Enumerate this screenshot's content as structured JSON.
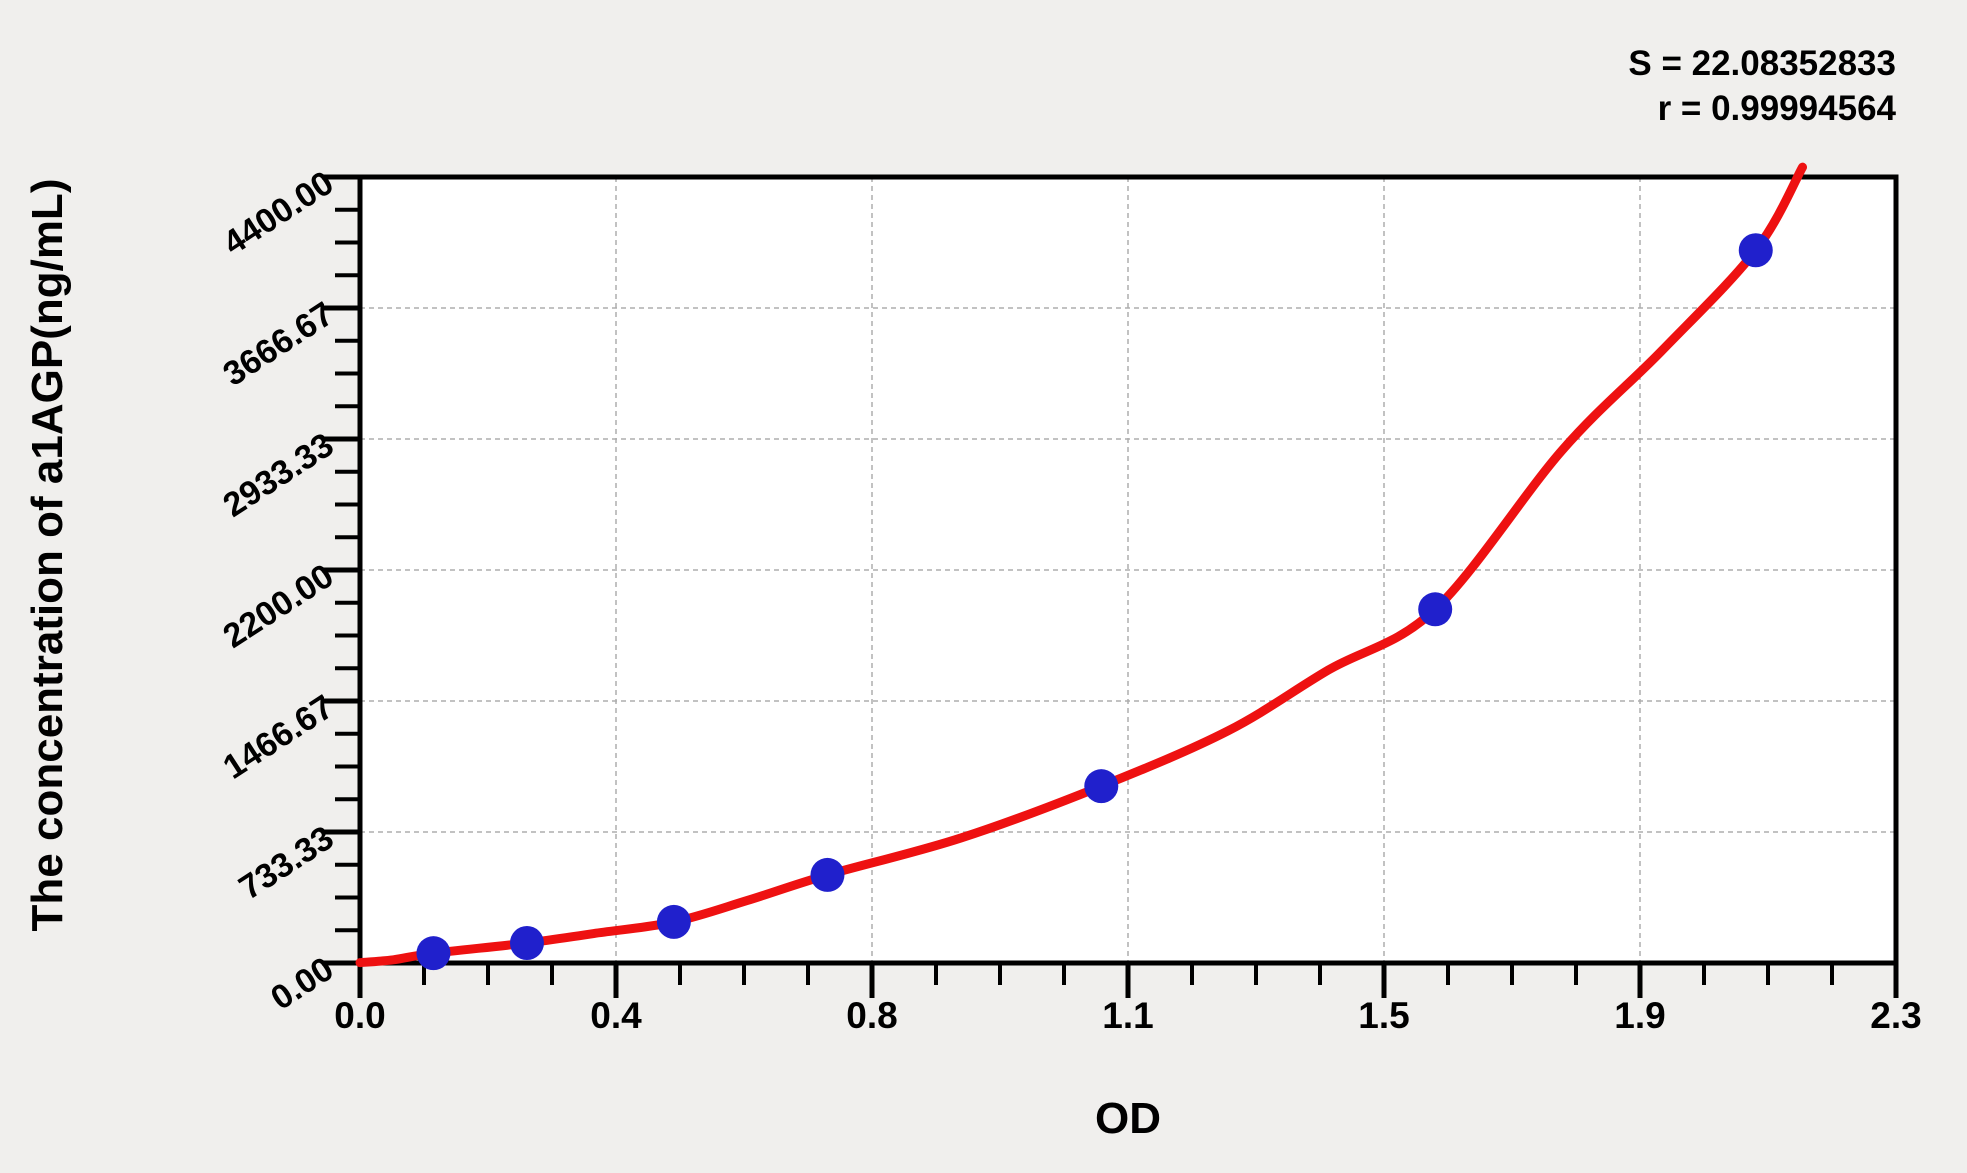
{
  "chart_data": {
    "type": "scatter",
    "title": "",
    "xlabel": "OD",
    "ylabel": "The concentration of a1AGP(ng/mL)",
    "x_axis": {
      "min": 0,
      "max": 2.3,
      "tick_labels": [
        "0.0",
        "0.4",
        "0.8",
        "1.1",
        "1.5",
        "1.9",
        "2.3"
      ],
      "major_divisions": 6,
      "minor_ticks_per_interval": 3
    },
    "y_axis": {
      "min": 0,
      "max": 4400,
      "tick_labels": [
        "0.00",
        "733.33",
        "1466.67",
        "2200.00",
        "2933.33",
        "3666.67",
        "4400.00"
      ],
      "major_divisions": 6,
      "minor_ticks_per_interval": 3
    },
    "grid": {
      "show": true,
      "style": "dashed",
      "at": "major-ticks-both-axes"
    },
    "legend": {
      "show": false
    },
    "series": [
      {
        "name": "standard-points",
        "type": "scatter",
        "marker": "circle",
        "color": "#2020cc",
        "points": [
          {
            "od": 0.11,
            "conc": 55
          },
          {
            "od": 0.25,
            "conc": 112
          },
          {
            "od": 0.47,
            "conc": 230
          },
          {
            "od": 0.7,
            "conc": 493
          },
          {
            "od": 1.11,
            "conc": 990
          },
          {
            "od": 1.61,
            "conc": 1980
          },
          {
            "od": 2.09,
            "conc": 3990
          }
        ]
      },
      {
        "name": "fitted-curve",
        "type": "line",
        "color": "#ee1111",
        "points": [
          {
            "od": 0.0,
            "conc": 2
          },
          {
            "od": 0.05,
            "conc": 18
          },
          {
            "od": 0.11,
            "conc": 55
          },
          {
            "od": 0.25,
            "conc": 112
          },
          {
            "od": 0.35,
            "conc": 165
          },
          {
            "od": 0.47,
            "conc": 230
          },
          {
            "od": 0.58,
            "conc": 350
          },
          {
            "od": 0.7,
            "conc": 493
          },
          {
            "od": 0.9,
            "conc": 700
          },
          {
            "od": 1.11,
            "conc": 990
          },
          {
            "od": 1.3,
            "conc": 1300
          },
          {
            "od": 1.45,
            "conc": 1640
          },
          {
            "od": 1.61,
            "conc": 1980
          },
          {
            "od": 1.8,
            "conc": 2870
          },
          {
            "od": 1.95,
            "conc": 3430
          },
          {
            "od": 2.09,
            "conc": 3990
          },
          {
            "od": 2.16,
            "conc": 4455
          }
        ]
      }
    ],
    "stats": {
      "S": 22.08352833,
      "r": 0.99994564
    }
  },
  "annotations": {
    "s_line": "S = 22.08352833",
    "r_line": "r = 0.99994564"
  },
  "colors": {
    "page_background": "#f0efed",
    "plot_background": "#ffffff",
    "axis": "#000000",
    "gridline": "#adadad",
    "curve": "#ee1111",
    "point": "#2020cc",
    "text": "#000000"
  }
}
